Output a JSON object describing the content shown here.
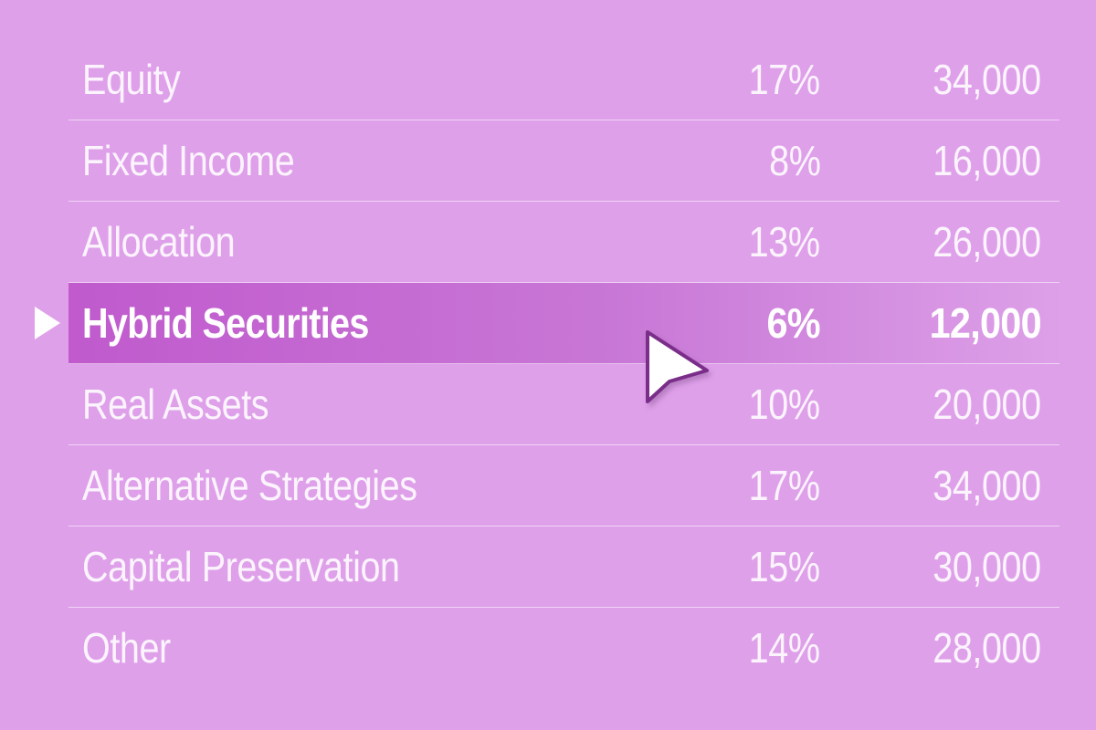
{
  "table": {
    "rows": [
      {
        "name": "Equity",
        "percent": "17%",
        "amount": "34,000"
      },
      {
        "name": "Fixed Income",
        "percent": "8%",
        "amount": "16,000"
      },
      {
        "name": "Allocation",
        "percent": "13%",
        "amount": "26,000"
      },
      {
        "name": "Hybrid Securities",
        "percent": "6%",
        "amount": "12,000"
      },
      {
        "name": "Real Assets",
        "percent": "10%",
        "amount": "20,000"
      },
      {
        "name": "Alternative Strategies",
        "percent": "17%",
        "amount": "34,000"
      },
      {
        "name": "Capital Preservation",
        "percent": "15%",
        "amount": "30,000"
      },
      {
        "name": "Other",
        "percent": "14%",
        "amount": "28,000"
      }
    ],
    "selected_index": 3
  },
  "colors": {
    "background": "#dfa0ea",
    "selected_row": "#c05acd",
    "cursor_outline": "#7a2e8a"
  },
  "icons": {
    "selection_marker": "triangle-right-icon",
    "pointer": "mouse-cursor-icon"
  }
}
